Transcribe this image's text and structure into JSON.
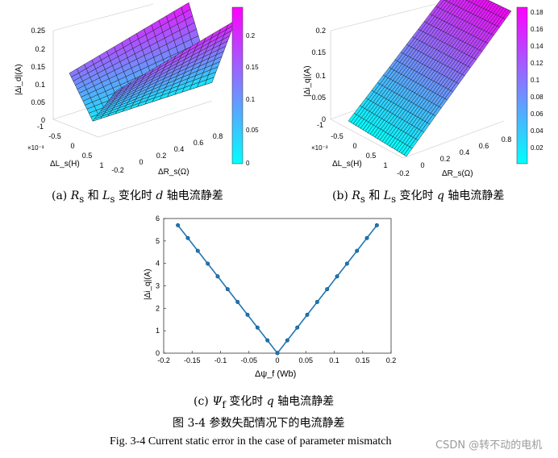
{
  "colormap": {
    "low": "#00ffff",
    "high": "#ff00ff",
    "edge": "#1a1a1a"
  },
  "chart_data": [
    {
      "type": "surface3d",
      "id": "a",
      "zlabel": "|Δi_d|(A)",
      "xlabel": "ΔL_s(H)",
      "ylabel": "ΔR_s(Ω)",
      "x_multiplier": "×10⁻³",
      "x_ticks": [
        "-1",
        "-0.5",
        "0",
        "0.5",
        "1"
      ],
      "y_ticks": [
        "-0.2",
        "0",
        "0.2",
        "0.4",
        "0.6",
        "0.8"
      ],
      "z_ticks": [
        "0",
        "0.05",
        "0.1",
        "0.15",
        "0.2",
        "0.25"
      ],
      "colorbar_ticks": [
        "0",
        "0.05",
        "0.1",
        "0.15",
        "0.2"
      ],
      "xlim": [
        -1,
        1
      ],
      "ylim": [
        -0.2,
        0.8
      ],
      "zlim": [
        0,
        0.25
      ],
      "clim": [
        0,
        0.24
      ],
      "surface": "v-shaped valley along ΔL_s = 0 rising linearly toward both ΔL_s ends; rises with ΔR_s",
      "caption": {
        "prefix": "(a) ",
        "r": "R",
        "mid1": "和 ",
        "l": "L",
        "mid2": "变化时 ",
        "axis": "d",
        "tail": " 轴电流静差"
      }
    },
    {
      "type": "surface3d",
      "id": "b",
      "zlabel": "|Δi_q|(A)",
      "xlabel": "ΔL_s(H)",
      "ylabel": "ΔR_s(Ω)",
      "x_multiplier": "×10⁻³",
      "x_ticks": [
        "-1",
        "-0.5",
        "0",
        "0.5",
        "1"
      ],
      "y_ticks": [
        "-0.2",
        "0",
        "0.2",
        "0.4",
        "0.6",
        "0.8"
      ],
      "z_ticks": [
        "0",
        "0.05",
        "0.1",
        "0.15",
        "0.2"
      ],
      "colorbar_ticks": [
        "0.02",
        "0.04",
        "0.06",
        "0.08",
        "0.1",
        "0.12",
        "0.14",
        "0.16",
        "0.18"
      ],
      "xlim": [
        -1,
        1
      ],
      "ylim": [
        -0.2,
        0.8
      ],
      "zlim": [
        0,
        0.2
      ],
      "clim": [
        0,
        0.185
      ],
      "surface": "inclined plane rising with ΔR_s, near zero at ΔR_s = -0.2",
      "caption": {
        "prefix": "(b) ",
        "r": "R",
        "mid1": "和 ",
        "l": "L",
        "mid2": "变化时 ",
        "axis": "q",
        "tail": " 轴电流静差"
      }
    },
    {
      "type": "line",
      "id": "c",
      "xlabel": "Δψ_f (Wb)",
      "ylabel": "|Δi_q|(A)",
      "xlim": [
        -0.2,
        0.2
      ],
      "ylim": [
        0,
        6
      ],
      "x_ticks": [
        "-0.2",
        "-0.15",
        "-0.1",
        "-0.05",
        "0",
        "0.05",
        "0.1",
        "0.15",
        "0.2"
      ],
      "y_ticks": [
        "0",
        "1",
        "2",
        "3",
        "4",
        "5",
        "6"
      ],
      "series": [
        {
          "color": "#1f77b4",
          "x": [
            -0.175,
            -0.1575,
            -0.14,
            -0.1225,
            -0.105,
            -0.0875,
            -0.07,
            -0.0525,
            -0.035,
            -0.0175,
            0,
            0.0175,
            0.035,
            0.0525,
            0.07,
            0.0875,
            0.105,
            0.1225,
            0.14,
            0.1575,
            0.175
          ],
          "y": [
            5.7,
            5.13,
            4.56,
            3.99,
            3.42,
            2.85,
            2.28,
            1.71,
            1.14,
            0.57,
            0,
            0.57,
            1.14,
            1.71,
            2.28,
            2.85,
            3.42,
            3.99,
            4.56,
            5.13,
            5.7
          ]
        }
      ],
      "caption": {
        "prefix": "(c) ",
        "psi": "Ψ",
        "mid": "变化时 ",
        "axis": "q",
        "tail": " 轴电流静差"
      }
    }
  ],
  "figure": {
    "title_cn": "图 3-4  参数失配情况下的电流静差",
    "title_en": "Fig. 3-4 Current static error in the case of parameter mismatch",
    "watermark": "CSDN @转不动的电机"
  }
}
